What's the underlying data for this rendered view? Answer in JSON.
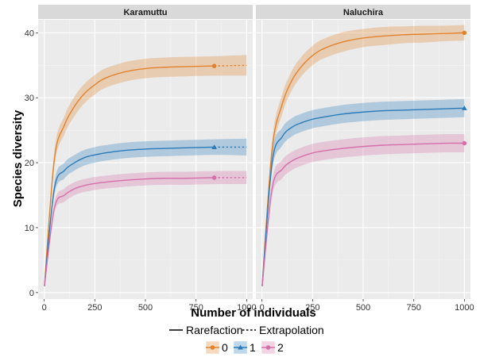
{
  "chart_data": {
    "type": "line",
    "xlabel": "Number of individuals",
    "ylabel": "Species diversity",
    "xlim": [
      -30,
      1030
    ],
    "ylim": [
      -1,
      42
    ],
    "x_ticks": [
      0,
      250,
      500,
      750,
      1000
    ],
    "y_ticks": [
      0,
      10,
      20,
      30,
      40
    ],
    "grid": true,
    "legend_position": "bottom",
    "linetype_legend": [
      {
        "label": "Rarefaction",
        "style": "solid"
      },
      {
        "label": "Extrapolation",
        "style": "dotted"
      }
    ],
    "color_legend": [
      {
        "label": "0",
        "color": "#E1832E",
        "marker": "circle"
      },
      {
        "label": "1",
        "color": "#2A7BB9",
        "marker": "triangle"
      },
      {
        "label": "2",
        "color": "#D56FA8",
        "marker": "circle"
      }
    ],
    "panels": [
      {
        "title": "Karamuttu",
        "observed_n": 840,
        "series": [
          {
            "name": "0",
            "color": "#E1832E",
            "marker": "circle",
            "x": [
              1,
              50,
              100,
              150,
              200,
              250,
              300,
              400,
              500,
              600,
              700,
              840,
              1000
            ],
            "y": [
              1,
              20.5,
              25.8,
              28.7,
              30.7,
              32.0,
              33.0,
              34.0,
              34.5,
              34.7,
              34.8,
              34.9,
              35.0
            ],
            "ci": [
              0,
              1.2,
              1.4,
              1.5,
              1.5,
              1.5,
              1.5,
              1.5,
              1.5,
              1.5,
              1.5,
              1.5,
              1.6
            ]
          },
          {
            "name": "1",
            "color": "#2A7BB9",
            "marker": "triangle",
            "x": [
              1,
              50,
              100,
              150,
              200,
              250,
              300,
              400,
              500,
              600,
              700,
              840,
              1000
            ],
            "y": [
              1,
              16.0,
              18.8,
              20.0,
              20.8,
              21.2,
              21.5,
              21.9,
              22.1,
              22.2,
              22.3,
              22.4,
              22.4
            ],
            "ci": [
              0,
              1.0,
              1.2,
              1.2,
              1.2,
              1.2,
              1.2,
              1.2,
              1.2,
              1.2,
              1.2,
              1.2,
              1.3
            ]
          },
          {
            "name": "2",
            "color": "#D56FA8",
            "marker": "circle",
            "x": [
              1,
              50,
              100,
              150,
              200,
              250,
              300,
              400,
              500,
              600,
              700,
              840,
              1000
            ],
            "y": [
              1,
              13.0,
              15.0,
              16.0,
              16.5,
              16.8,
              17.0,
              17.3,
              17.5,
              17.6,
              17.6,
              17.7,
              17.7
            ],
            "ci": [
              0,
              0.8,
              1.0,
              1.0,
              1.0,
              1.0,
              1.0,
              1.0,
              1.0,
              1.0,
              1.0,
              1.0,
              1.0
            ]
          }
        ]
      },
      {
        "title": "Naluchira",
        "observed_n": 1000,
        "series": [
          {
            "name": "0",
            "color": "#E1832E",
            "marker": "circle",
            "x": [
              1,
              50,
              100,
              150,
              200,
              250,
              300,
              400,
              500,
              600,
              700,
              800,
              900,
              1000
            ],
            "y": [
              1,
              22.0,
              29.0,
              32.8,
              35.0,
              36.5,
              37.5,
              38.6,
              39.2,
              39.5,
              39.7,
              39.8,
              39.9,
              40.0
            ],
            "ci": [
              0,
              1.3,
              1.5,
              1.5,
              1.5,
              1.5,
              1.5,
              1.5,
              1.4,
              1.4,
              1.3,
              1.3,
              1.2,
              1.2
            ]
          },
          {
            "name": "1",
            "color": "#2A7BB9",
            "marker": "triangle",
            "x": [
              1,
              50,
              100,
              150,
              200,
              250,
              300,
              400,
              500,
              600,
              700,
              800,
              900,
              1000
            ],
            "y": [
              1,
              20.0,
              24.0,
              25.5,
              26.2,
              26.7,
              27.0,
              27.5,
              27.8,
              28.0,
              28.1,
              28.2,
              28.3,
              28.4
            ],
            "ci": [
              0,
              1.3,
              1.4,
              1.4,
              1.4,
              1.4,
              1.4,
              1.4,
              1.4,
              1.4,
              1.4,
              1.4,
              1.4,
              1.4
            ]
          },
          {
            "name": "2",
            "color": "#D56FA8",
            "marker": "circle",
            "x": [
              1,
              50,
              100,
              150,
              200,
              250,
              300,
              400,
              500,
              600,
              700,
              800,
              900,
              1000
            ],
            "y": [
              1,
              16.0,
              19.0,
              20.3,
              21.0,
              21.5,
              21.8,
              22.2,
              22.5,
              22.7,
              22.8,
              22.9,
              23.0,
              23.0
            ],
            "ci": [
              0,
              1.2,
              1.4,
              1.4,
              1.4,
              1.4,
              1.4,
              1.4,
              1.4,
              1.4,
              1.4,
              1.4,
              1.4,
              1.4
            ]
          }
        ]
      }
    ]
  }
}
